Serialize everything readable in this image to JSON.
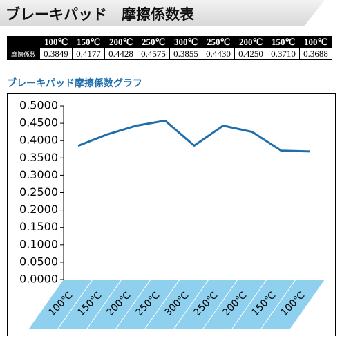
{
  "header": {
    "title": "ブレーキパッド　摩擦係数表"
  },
  "table": {
    "columns": [
      "100℃",
      "150℃",
      "200℃",
      "250℃",
      "300℃",
      "250℃",
      "200℃",
      "150℃",
      "100℃"
    ],
    "rows": [
      {
        "label": "摩擦係数",
        "cells": [
          "0.3849",
          "0.4177",
          "0.4428",
          "0.4575",
          "0.3855",
          "0.4430",
          "0.4250",
          "0.3710",
          "0.3688"
        ]
      }
    ]
  },
  "chart_data": {
    "type": "line",
    "title": "ブレーキパッド摩擦係数グラフ",
    "categories": [
      "100℃",
      "150℃",
      "200℃",
      "250℃",
      "300℃",
      "250℃",
      "200℃",
      "150℃",
      "100℃"
    ],
    "series": [
      {
        "name": "摩擦係数",
        "color": "#1f6fad",
        "values": [
          0.3849,
          0.4177,
          0.4428,
          0.4575,
          0.3855,
          0.443,
          0.425,
          0.371,
          0.3688
        ]
      }
    ],
    "ylim": [
      0,
      0.5
    ],
    "yticks": [
      {
        "value": 0,
        "label": "0.0000"
      },
      {
        "value": 0.05,
        "label": "0.0500"
      },
      {
        "value": 0.1,
        "label": "0.1000"
      },
      {
        "value": 0.15,
        "label": "0.1500"
      },
      {
        "value": 0.2,
        "label": "0.2000"
      },
      {
        "value": 0.25,
        "label": "0.2500"
      },
      {
        "value": 0.3,
        "label": "0.3000"
      },
      {
        "value": 0.35,
        "label": "0.3500"
      },
      {
        "value": 0.4,
        "label": "0.4000"
      },
      {
        "value": 0.45,
        "label": "0.4500"
      },
      {
        "value": 0.5,
        "label": "0.5000"
      }
    ],
    "floor_color": "#8fd0ee"
  }
}
